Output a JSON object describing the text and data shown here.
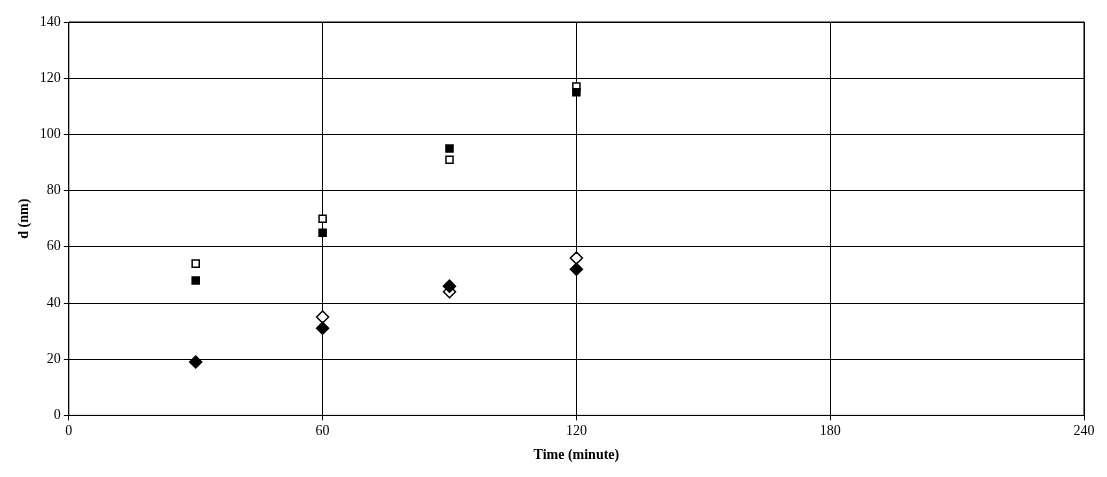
{
  "chart_data": {
    "type": "scatter",
    "xlabel": "Time (minute)",
    "ylabel": "d (nm)",
    "x": [
      30,
      60,
      90,
      120
    ],
    "series": [
      {
        "color": "#000000",
        "marker": "square",
        "values": [
          48,
          65,
          95,
          115
        ]
      },
      {
        "color": "#000000",
        "marker": "square",
        "values": [
          54,
          70,
          91,
          117
        ]
      },
      {
        "color": "#000000",
        "marker": "diamond",
        "values": [
          19,
          31,
          46,
          52
        ]
      },
      {
        "color": "#000000",
        "marker": "diamond",
        "values": [
          null,
          35,
          44,
          56
        ]
      }
    ],
    "xlim": [
      0,
      240
    ],
    "xticks": [
      0,
      60,
      120,
      180,
      240
    ],
    "ylim": [
      0,
      140
    ],
    "yticks": [
      0,
      20,
      40,
      60,
      80,
      100,
      120,
      140
    ],
    "grid": true,
    "legend": false
  }
}
